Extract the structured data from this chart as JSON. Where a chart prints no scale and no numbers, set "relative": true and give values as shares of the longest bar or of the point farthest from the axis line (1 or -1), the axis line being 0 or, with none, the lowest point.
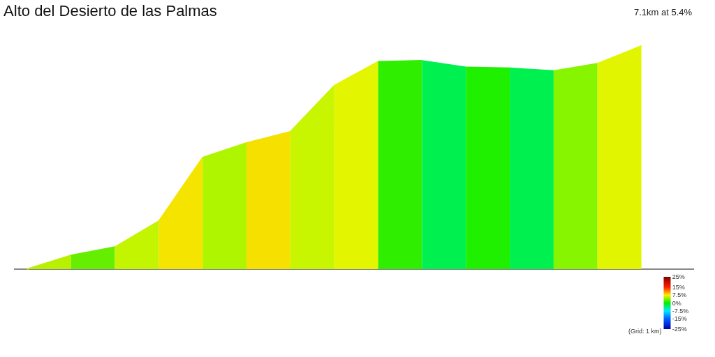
{
  "chart_data": {
    "type": "area",
    "title": "Alto del Desierto de las Palmas",
    "relative": true,
    "categories": [
      null,
      null,
      null,
      null,
      null,
      null,
      null,
      null,
      null,
      null,
      null,
      null,
      null,
      null,
      null
    ],
    "series": [
      {
        "color": "#b8f000",
        "values": [
          0,
          0.062,
          null,
          null,
          null,
          null,
          null,
          null,
          null,
          null,
          null,
          null,
          null,
          null,
          null
        ]
      },
      {
        "color": "#66ee00",
        "values": [
          null,
          0.062,
          0.099,
          null,
          null,
          null,
          null,
          null,
          null,
          null,
          null,
          null,
          null,
          null,
          null
        ]
      },
      {
        "color": "#c4f500",
        "values": [
          null,
          null,
          0.099,
          0.215,
          null,
          null,
          null,
          null,
          null,
          null,
          null,
          null,
          null,
          null,
          null
        ]
      },
      {
        "color": "#f5e400",
        "values": [
          null,
          null,
          null,
          0.215,
          0.5,
          null,
          null,
          null,
          null,
          null,
          null,
          null,
          null,
          null,
          null
        ]
      },
      {
        "color": "#b0f500",
        "values": [
          null,
          null,
          null,
          null,
          0.5,
          0.566,
          null,
          null,
          null,
          null,
          null,
          null,
          null,
          null,
          null
        ]
      },
      {
        "color": "#f5e000",
        "values": [
          null,
          null,
          null,
          null,
          null,
          0.566,
          0.616,
          null,
          null,
          null,
          null,
          null,
          null,
          null,
          null
        ]
      },
      {
        "color": "#c8f500",
        "values": [
          null,
          null,
          null,
          null,
          null,
          null,
          0.616,
          0.822,
          null,
          null,
          null,
          null,
          null,
          null,
          null
        ]
      },
      {
        "color": "#e4f500",
        "values": [
          null,
          null,
          null,
          null,
          null,
          null,
          null,
          0.822,
          0.93,
          null,
          null,
          null,
          null,
          null,
          null
        ]
      },
      {
        "color": "#30ee00",
        "values": [
          null,
          null,
          null,
          null,
          null,
          null,
          null,
          null,
          0.93,
          0.934,
          null,
          null,
          null,
          null,
          null
        ]
      },
      {
        "color": "#00f050",
        "values": [
          null,
          null,
          null,
          null,
          null,
          null,
          null,
          null,
          null,
          0.934,
          0.905,
          null,
          null,
          null,
          null
        ]
      },
      {
        "color": "#1ef000",
        "values": [
          null,
          null,
          null,
          null,
          null,
          null,
          null,
          null,
          null,
          null,
          0.905,
          0.901,
          null,
          null,
          null
        ]
      },
      {
        "color": "#00f050",
        "values": [
          null,
          null,
          null,
          null,
          null,
          null,
          null,
          null,
          null,
          null,
          null,
          0.901,
          0.888,
          null,
          null
        ]
      },
      {
        "color": "#88f500",
        "values": [
          null,
          null,
          null,
          null,
          null,
          null,
          null,
          null,
          null,
          null,
          null,
          null,
          0.888,
          0.921,
          null
        ]
      },
      {
        "color": "#e2f500",
        "values": [
          null,
          null,
          null,
          null,
          null,
          null,
          null,
          null,
          null,
          null,
          null,
          null,
          null,
          0.921,
          1
        ]
      }
    ],
    "clim": [
      -25,
      25
    ],
    "cticks": [
      {
        "value": 25,
        "label": "25%"
      },
      {
        "value": 15,
        "label": "15%"
      },
      {
        "value": 7.5,
        "label": "7.5%"
      },
      {
        "value": 0,
        "label": "0%"
      },
      {
        "value": -7.5,
        "label": "-7.5%"
      },
      {
        "value": -15,
        "label": "-15%"
      },
      {
        "value": -25,
        "label": "-25%"
      }
    ],
    "annotations": [
      "7.1km at 5.4%",
      "(Grid: 1 km)"
    ]
  }
}
